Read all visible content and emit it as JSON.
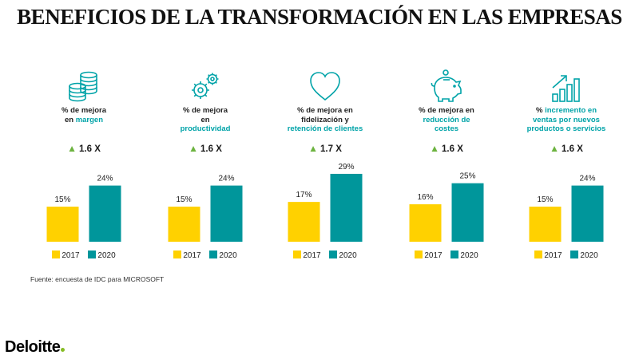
{
  "title": "BENEFICIOS DE LA TRANSFORMACIÓN EN LAS EMPRESAS",
  "source": "Fuente: encuesta de IDC para MICROSOFT",
  "brand": "Deloitte",
  "colors": {
    "series_2017": "#FFD100",
    "series_2020": "#00969B",
    "accent_text": "#00A3A8",
    "arrow": "#6CB33F",
    "brand_dot": "#86BC25"
  },
  "legend": [
    "2017",
    "2020"
  ],
  "panels": [
    {
      "icon": "coins-stack-icon",
      "caption_pre": "% de mejora\nen ",
      "caption_hl": "margen",
      "caption_post": "",
      "multiplier": "1.6 X"
    },
    {
      "icon": "gears-icon",
      "caption_pre": "% de mejora\nen\n",
      "caption_hl": "productividad",
      "caption_post": "",
      "multiplier": "1.6 X"
    },
    {
      "icon": "heart-icon",
      "caption_pre": "% de mejora en\nfidelización y\n",
      "caption_hl": "retención de clientes",
      "caption_post": "",
      "multiplier": "1.7 X"
    },
    {
      "icon": "piggy-bank-icon",
      "caption_pre": "% de mejora en\n",
      "caption_hl": "reducción de",
      "caption_post": "\ncostes",
      "multiplier": "1.6 X"
    },
    {
      "icon": "growth-chart-icon",
      "caption_pre": "% ",
      "caption_hl": "incremento en\nventas por nuevos\nproductos o servicios",
      "caption_post": "",
      "multiplier": "1.6 X"
    }
  ],
  "chart_data": [
    {
      "type": "bar",
      "categories": [
        "2017",
        "2020"
      ],
      "values": [
        15,
        24
      ],
      "labels": [
        "15%",
        "24%"
      ],
      "ylim": [
        0,
        30
      ]
    },
    {
      "type": "bar",
      "categories": [
        "2017",
        "2020"
      ],
      "values": [
        15,
        24
      ],
      "labels": [
        "15%",
        "24%"
      ],
      "ylim": [
        0,
        30
      ]
    },
    {
      "type": "bar",
      "categories": [
        "2017",
        "2020"
      ],
      "values": [
        17,
        29
      ],
      "labels": [
        "17%",
        "29%"
      ],
      "ylim": [
        0,
        30
      ]
    },
    {
      "type": "bar",
      "categories": [
        "2017",
        "2020"
      ],
      "values": [
        16,
        25
      ],
      "labels": [
        "16%",
        "25%"
      ],
      "ylim": [
        0,
        30
      ]
    },
    {
      "type": "bar",
      "categories": [
        "2017",
        "2020"
      ],
      "values": [
        15,
        24
      ],
      "labels": [
        "15%",
        "24%"
      ],
      "ylim": [
        0,
        30
      ]
    }
  ]
}
